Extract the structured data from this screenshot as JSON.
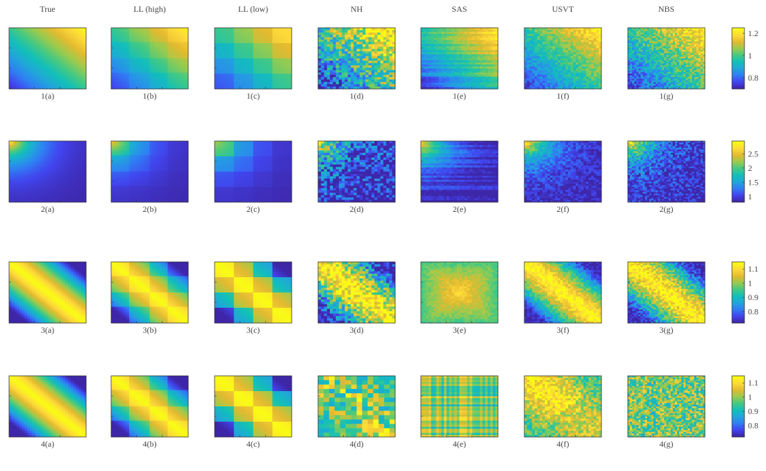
{
  "chart_data": {
    "type": "heatmap",
    "column_titles": [
      "True",
      "LL (high)",
      "LL (low)",
      "NH",
      "SAS",
      "USVT",
      "NBS"
    ],
    "rows": [
      {
        "id": "1",
        "panel_labels": [
          "1(a)",
          "1(b)",
          "1(c)",
          "1(d)",
          "1(e)",
          "1(f)",
          "1(g)"
        ],
        "colorbar": {
          "min": 0.7,
          "max": 1.25,
          "ticks": [
            0.8,
            1,
            1.2
          ],
          "tick_labels": [
            "0.8",
            "1",
            "1.2"
          ]
        }
      },
      {
        "id": "2",
        "panel_labels": [
          "2(a)",
          "2(b)",
          "2(c)",
          "2(d)",
          "2(e)",
          "2(f)",
          "2(g)"
        ],
        "colorbar": {
          "min": 0.8,
          "max": 2.95,
          "ticks": [
            1,
            1.5,
            2,
            2.5
          ],
          "tick_labels": [
            "1",
            "1.5",
            "2",
            "2.5"
          ]
        }
      },
      {
        "id": "3",
        "panel_labels": [
          "3(a)",
          "3(b)",
          "3(c)",
          "3(d)",
          "3(e)",
          "3(f)",
          "3(g)"
        ],
        "colorbar": {
          "min": 0.72,
          "max": 1.15,
          "ticks": [
            0.8,
            0.9,
            1,
            1.1
          ],
          "tick_labels": [
            "0.8",
            "0.9",
            "1",
            "1.1"
          ]
        }
      },
      {
        "id": "4",
        "panel_labels": [
          "4(a)",
          "4(b)",
          "4(c)",
          "4(d)",
          "4(e)",
          "4(f)",
          "4(g)"
        ],
        "colorbar": {
          "min": 0.72,
          "max": 1.15,
          "ticks": [
            0.8,
            0.9,
            1,
            1.1
          ],
          "tick_labels": [
            "0.8",
            "0.9",
            "1",
            "1.1"
          ]
        }
      }
    ],
    "colormap": [
      "#3e26a8",
      "#4145ee",
      "#2f7ff4",
      "#20a6da",
      "#12bfb9",
      "#45c982",
      "#99cb4e",
      "#e3ba2f",
      "#fdd93a",
      "#f9fb15"
    ]
  }
}
